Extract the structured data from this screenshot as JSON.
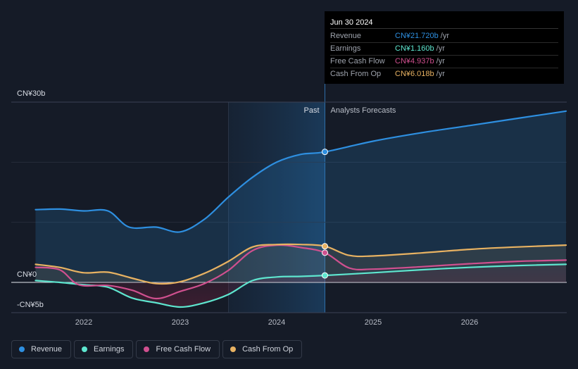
{
  "chart_data": {
    "type": "line",
    "y_unit_labels": [
      "CN¥30b",
      "CN¥0",
      "-CN¥5b"
    ],
    "ylim": [
      -5,
      30
    ],
    "xlim": [
      2021.5,
      2027.0
    ],
    "x_ticks": [
      "2022",
      "2023",
      "2024",
      "2025",
      "2026"
    ],
    "divider_x": 2024.5,
    "past_label": "Past",
    "forecast_label": "Analysts Forecasts",
    "series": [
      {
        "name": "Revenue",
        "color": "#2e8fe0",
        "points": [
          [
            2021.5,
            12.1
          ],
          [
            2021.75,
            12.2
          ],
          [
            2022.0,
            11.9
          ],
          [
            2022.25,
            11.9
          ],
          [
            2022.47,
            9.2
          ],
          [
            2022.75,
            9.2
          ],
          [
            2023.0,
            8.4
          ],
          [
            2023.25,
            10.5
          ],
          [
            2023.5,
            14.2
          ],
          [
            2023.75,
            17.5
          ],
          [
            2024.0,
            20.0
          ],
          [
            2024.25,
            21.3
          ],
          [
            2024.5,
            21.72
          ],
          [
            2025.0,
            23.5
          ],
          [
            2025.5,
            24.9
          ],
          [
            2026.0,
            26.1
          ],
          [
            2026.5,
            27.3
          ],
          [
            2027.0,
            28.5
          ]
        ]
      },
      {
        "name": "Earnings",
        "color": "#5ee6cf",
        "points": [
          [
            2021.5,
            0.3
          ],
          [
            2021.75,
            0.0
          ],
          [
            2022.0,
            -0.4
          ],
          [
            2022.25,
            -0.8
          ],
          [
            2022.5,
            -2.6
          ],
          [
            2022.75,
            -3.4
          ],
          [
            2023.0,
            -4.1
          ],
          [
            2023.25,
            -3.4
          ],
          [
            2023.5,
            -2.0
          ],
          [
            2023.75,
            0.3
          ],
          [
            2024.0,
            0.9
          ],
          [
            2024.25,
            1.0
          ],
          [
            2024.5,
            1.16
          ],
          [
            2025.0,
            1.6
          ],
          [
            2025.5,
            2.1
          ],
          [
            2026.0,
            2.5
          ],
          [
            2026.5,
            2.8
          ],
          [
            2027.0,
            3.0
          ]
        ]
      },
      {
        "name": "Free Cash Flow",
        "color": "#d0508f",
        "points": [
          [
            2021.5,
            2.5
          ],
          [
            2021.75,
            2.1
          ],
          [
            2021.95,
            -0.4
          ],
          [
            2022.25,
            -0.5
          ],
          [
            2022.5,
            -1.3
          ],
          [
            2022.75,
            -2.7
          ],
          [
            2023.0,
            -1.5
          ],
          [
            2023.25,
            -0.2
          ],
          [
            2023.5,
            2.0
          ],
          [
            2023.75,
            5.3
          ],
          [
            2024.0,
            6.2
          ],
          [
            2024.25,
            5.8
          ],
          [
            2024.5,
            4.937
          ],
          [
            2024.75,
            2.4
          ],
          [
            2025.0,
            2.2
          ],
          [
            2025.5,
            2.6
          ],
          [
            2026.0,
            3.1
          ],
          [
            2026.5,
            3.5
          ],
          [
            2027.0,
            3.7
          ]
        ]
      },
      {
        "name": "Cash From Op",
        "color": "#e8b262",
        "points": [
          [
            2021.5,
            3.0
          ],
          [
            2021.75,
            2.5
          ],
          [
            2022.0,
            1.6
          ],
          [
            2022.25,
            1.7
          ],
          [
            2022.5,
            0.7
          ],
          [
            2022.75,
            -0.2
          ],
          [
            2023.0,
            0.1
          ],
          [
            2023.25,
            1.5
          ],
          [
            2023.5,
            3.5
          ],
          [
            2023.75,
            5.9
          ],
          [
            2024.0,
            6.3
          ],
          [
            2024.25,
            6.3
          ],
          [
            2024.5,
            6.018
          ],
          [
            2024.75,
            4.5
          ],
          [
            2025.0,
            4.4
          ],
          [
            2025.5,
            4.9
          ],
          [
            2026.0,
            5.5
          ],
          [
            2026.5,
            5.9
          ],
          [
            2027.0,
            6.2
          ]
        ]
      }
    ],
    "highlight_points": [
      {
        "series": "Revenue",
        "x": 2024.5,
        "y": 21.72
      },
      {
        "series": "Earnings",
        "x": 2024.5,
        "y": 1.16
      },
      {
        "series": "Free Cash Flow",
        "x": 2024.5,
        "y": 4.937
      },
      {
        "series": "Cash From Op",
        "x": 2024.5,
        "y": 6.018
      }
    ]
  },
  "tooltip": {
    "date": "Jun 30 2024",
    "unit": "/yr",
    "rows": [
      {
        "label": "Revenue",
        "value": "CN¥21.720b",
        "color": "#2e8fe0"
      },
      {
        "label": "Earnings",
        "value": "CN¥1.160b",
        "color": "#5ee6cf"
      },
      {
        "label": "Free Cash Flow",
        "value": "CN¥4.937b",
        "color": "#d0508f"
      },
      {
        "label": "Cash From Op",
        "value": "CN¥6.018b",
        "color": "#e8b262"
      }
    ]
  },
  "legend": [
    {
      "label": "Revenue",
      "color": "#2e8fe0"
    },
    {
      "label": "Earnings",
      "color": "#5ee6cf"
    },
    {
      "label": "Free Cash Flow",
      "color": "#d0508f"
    },
    {
      "label": "Cash From Op",
      "color": "#e8b262"
    }
  ]
}
